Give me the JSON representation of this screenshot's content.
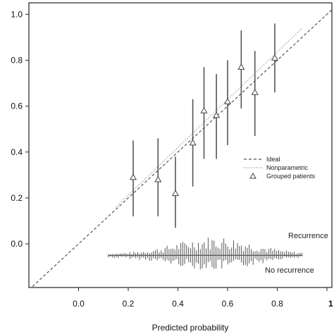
{
  "chart_data": {
    "type": "scatter",
    "title": "",
    "xlabel": "Predicted probability",
    "ylabel": "",
    "xlim": [
      -0.2,
      1.02
    ],
    "ylim": [
      -0.19,
      1.05
    ],
    "x_ticks": [
      {
        "value": 0.0,
        "label": "0.0"
      },
      {
        "value": 0.2,
        "label": "0.2"
      },
      {
        "value": 0.4,
        "label": "0.4"
      },
      {
        "value": 0.6,
        "label": "0.6"
      },
      {
        "value": 0.8,
        "label": "0.8"
      },
      {
        "value": 1.0,
        "label": "1"
      }
    ],
    "y_ticks": [
      {
        "value": 0.0,
        "label": "0.0"
      },
      {
        "value": 0.2,
        "label": "0.2"
      },
      {
        "value": 0.4,
        "label": "0.4"
      },
      {
        "value": 0.6,
        "label": "0.6"
      },
      {
        "value": 0.8,
        "label": "0.8"
      },
      {
        "value": 1.0,
        "label": "1.0"
      }
    ],
    "grid": false,
    "legend_position": "right",
    "legend": [
      {
        "label": "Ideal",
        "style": "dashed"
      },
      {
        "label": "Nonparametric",
        "style": "dotted"
      },
      {
        "label": "Grouped patients",
        "style": "triangle"
      }
    ],
    "ideal_line": {
      "x": [
        -0.2,
        1.02
      ],
      "y": [
        -0.2,
        1.02
      ]
    },
    "nonparametric_line": {
      "x": [
        0.15,
        0.9
      ],
      "y": [
        0.16,
        0.94
      ]
    },
    "grouped_patients": [
      {
        "x": 0.22,
        "y": 0.29,
        "lower": 0.12,
        "upper": 0.45
      },
      {
        "x": 0.32,
        "y": 0.28,
        "lower": 0.12,
        "upper": 0.46
      },
      {
        "x": 0.39,
        "y": 0.22,
        "lower": 0.07,
        "upper": 0.38
      },
      {
        "x": 0.46,
        "y": 0.44,
        "lower": 0.25,
        "upper": 0.63
      },
      {
        "x": 0.505,
        "y": 0.58,
        "lower": 0.37,
        "upper": 0.77
      },
      {
        "x": 0.555,
        "y": 0.56,
        "lower": 0.37,
        "upper": 0.74
      },
      {
        "x": 0.6,
        "y": 0.62,
        "lower": 0.43,
        "upper": 0.8
      },
      {
        "x": 0.655,
        "y": 0.77,
        "lower": 0.59,
        "upper": 0.93
      },
      {
        "x": 0.71,
        "y": 0.66,
        "lower": 0.47,
        "upper": 0.84
      },
      {
        "x": 0.79,
        "y": 0.81,
        "lower": 0.66,
        "upper": 0.96
      }
    ],
    "rug": {
      "baseline_y": -0.05,
      "x_range": [
        0.12,
        0.9
      ],
      "bins": 100
    },
    "annotations": [
      {
        "name": "recurrence-label",
        "text": "Recurrence"
      },
      {
        "name": "no-recurrence-label",
        "text": "No recurrence"
      }
    ],
    "colors": {
      "axis": "#222222",
      "ideal": "#555555",
      "nonparametric": "#9a9a9a",
      "points": "#444444",
      "errorbars": "#555555",
      "rug": "#555555"
    }
  }
}
